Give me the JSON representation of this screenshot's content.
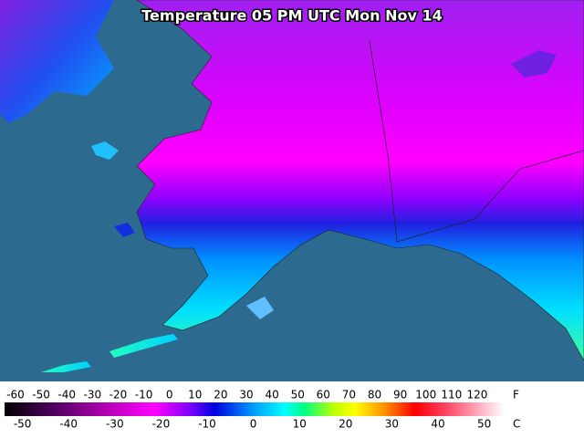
{
  "title": "Temperature 05 PM UTC Mon Nov 14",
  "legend": {
    "fahrenheit": {
      "unit": "F",
      "ticks": [
        -60,
        -50,
        -40,
        -30,
        -20,
        -10,
        0,
        10,
        20,
        30,
        40,
        50,
        60,
        70,
        80,
        90,
        100,
        110,
        120
      ]
    },
    "celsius": {
      "unit": "C",
      "ticks": [
        -50,
        -40,
        -30,
        -20,
        -10,
        0,
        10,
        20,
        30,
        40,
        50
      ]
    }
  }
}
